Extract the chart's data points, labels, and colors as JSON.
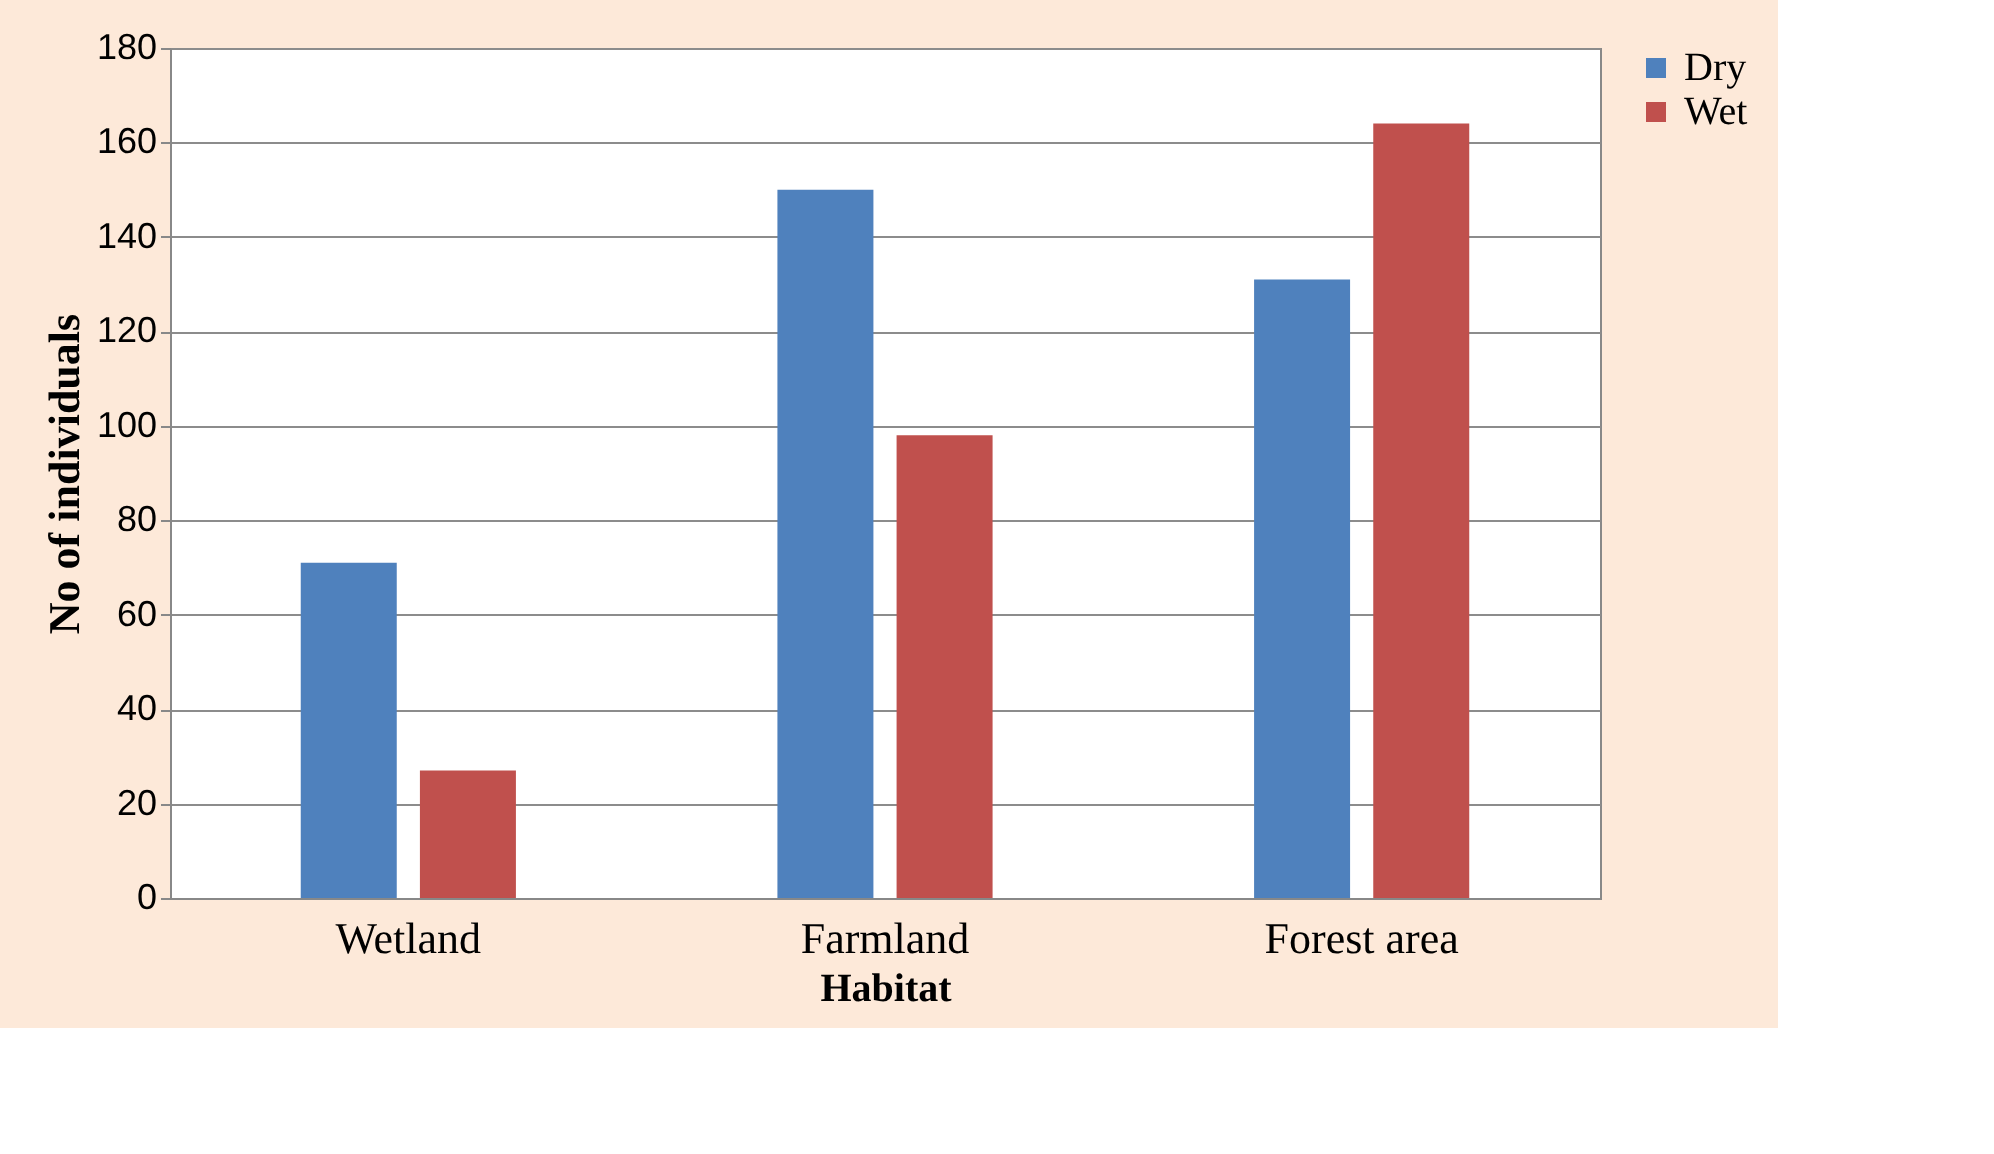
{
  "chart_data": {
    "type": "bar",
    "xlabel": "Habitat",
    "ylabel": "No of individuals",
    "categories": [
      "Wetland",
      "Farmland",
      "Forest area"
    ],
    "series": [
      {
        "name": "Dry",
        "color": "#4f81bd",
        "values": [
          71,
          150,
          131
        ]
      },
      {
        "name": "Wet",
        "color": "#c0504d",
        "values": [
          27,
          98,
          164
        ]
      }
    ],
    "ylim": [
      0,
      180
    ],
    "yticks": [
      0,
      20,
      40,
      60,
      80,
      100,
      120,
      140,
      160,
      180
    ],
    "grid": "y",
    "legend": "right"
  }
}
